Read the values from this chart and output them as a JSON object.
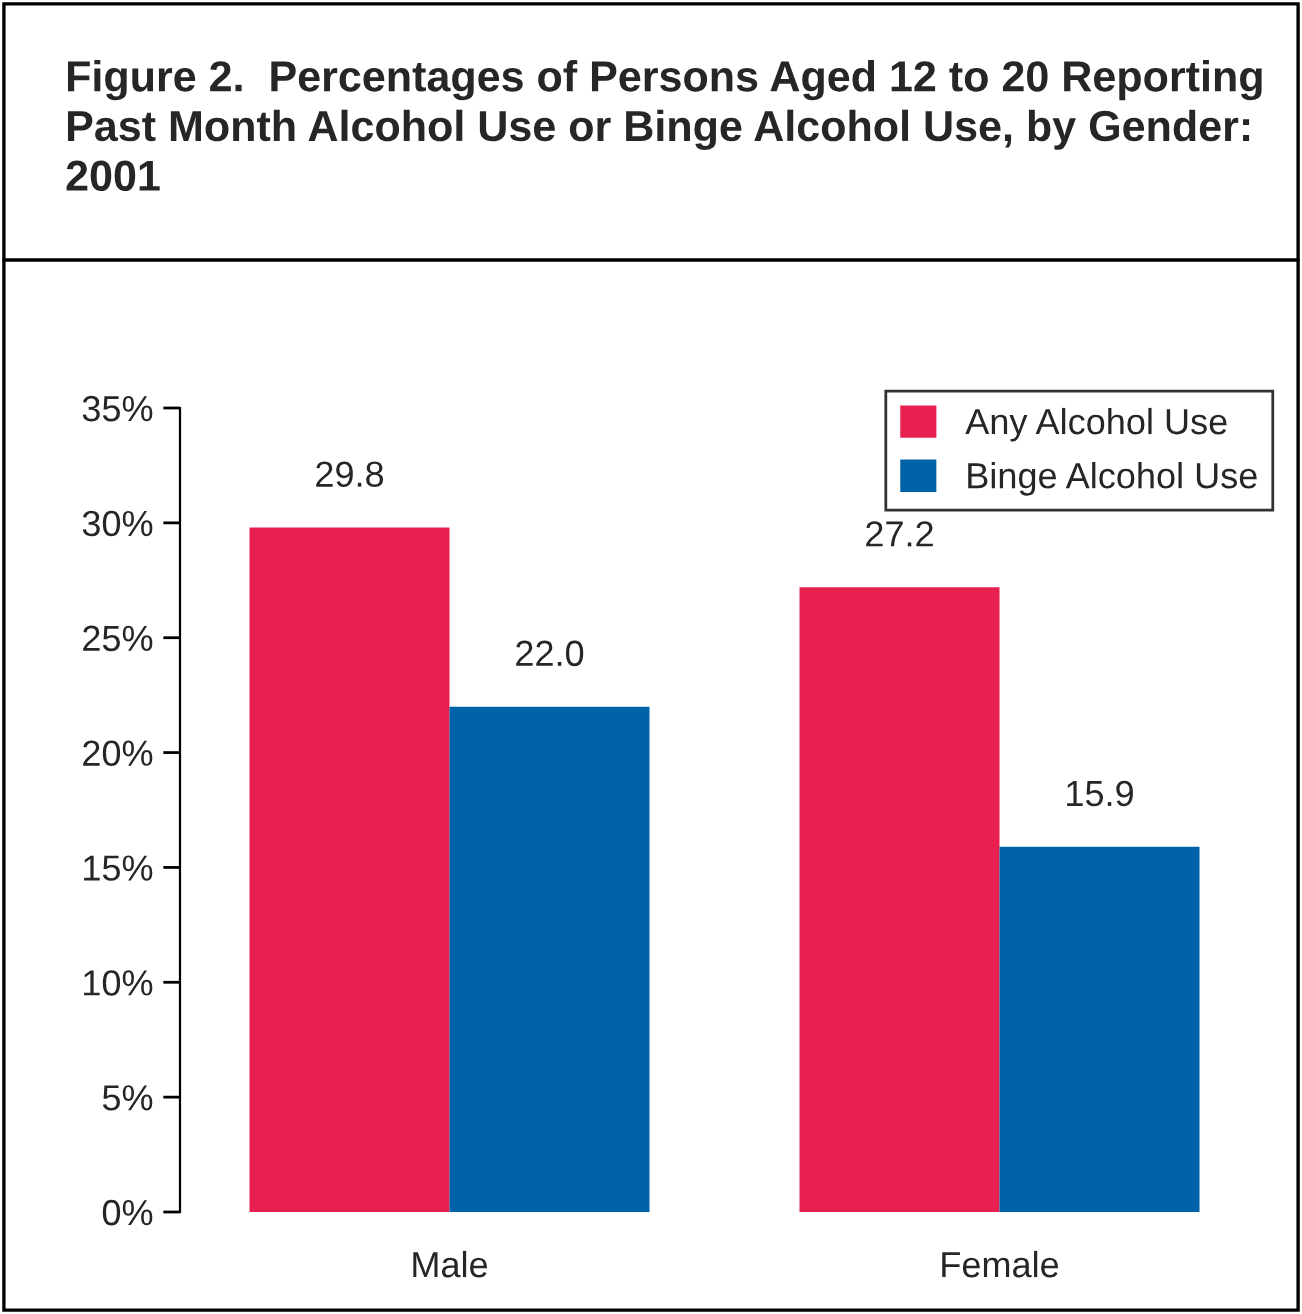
{
  "chart_data": {
    "type": "bar",
    "title": "Figure 2.  Percentages of Persons Aged 12 to 20 Reporting Past Month Alcohol Use or Binge Alcohol Use, by Gender:  2001",
    "categories": [
      "Male",
      "Female"
    ],
    "series": [
      {
        "name": "Any Alcohol Use",
        "color": "#e8204f",
        "values": [
          29.8,
          27.2
        ],
        "value_labels": [
          "29.8",
          "27.2"
        ]
      },
      {
        "name": "Binge Alcohol Use",
        "color": "#0062a8",
        "values": [
          22.0,
          15.9
        ],
        "value_labels": [
          "22.0",
          "15.9"
        ]
      }
    ],
    "ylim": [
      0,
      35
    ],
    "yticks": [
      {
        "value": 0,
        "label": "0%"
      },
      {
        "value": 5,
        "label": "5%"
      },
      {
        "value": 10,
        "label": "10%"
      },
      {
        "value": 15,
        "label": "15%"
      },
      {
        "value": 20,
        "label": "20%"
      },
      {
        "value": 25,
        "label": "25%"
      },
      {
        "value": 30,
        "label": "30%"
      },
      {
        "value": 35,
        "label": "35%"
      }
    ],
    "grid": false,
    "legend": "top right"
  }
}
